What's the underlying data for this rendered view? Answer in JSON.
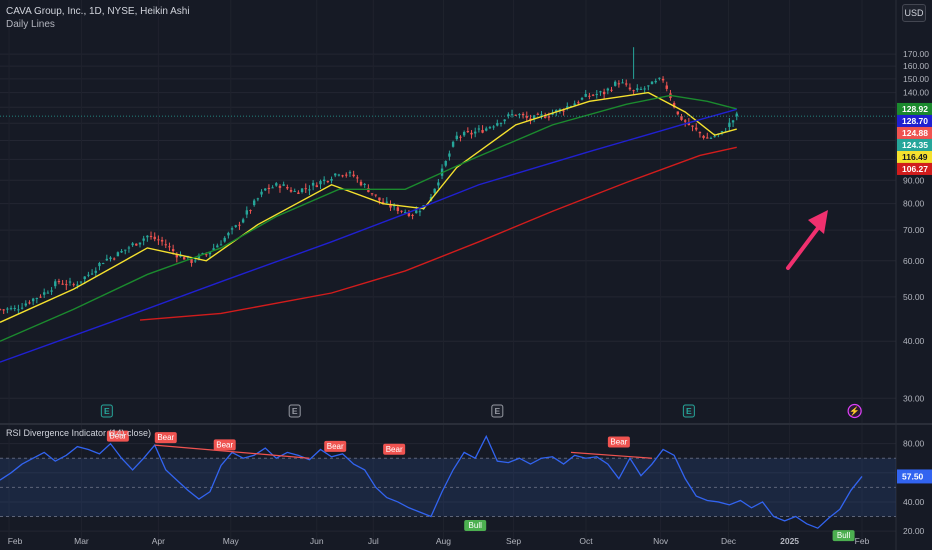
{
  "header": {
    "title": "CAVA Group, Inc., 1D, NYSE, Heikin Ashi",
    "subtitle": "Daily Lines",
    "currency": "USD"
  },
  "rsi_panel": {
    "title": "RSI Divergence Indicator (14) close)"
  },
  "colors": {
    "background": "#161a25",
    "candle_up": "#26a69a",
    "candle_down": "#ef5350",
    "ma_yellow": "#f5e12e",
    "ma_green": "#1b8a2e",
    "ma_blue": "#2020d0",
    "ma_red": "#d11c1c",
    "rsi_line": "#3264f0",
    "arrow": "#f0306e"
  },
  "chart_data": [
    {
      "type": "candlestick",
      "title": "CAVA Group, Inc., 1D, NYSE, Heikin Ashi",
      "x_ticks": [
        "Feb",
        "Mar",
        "Apr",
        "May",
        "Jun",
        "Jul",
        "Aug",
        "Sep",
        "Oct",
        "Nov",
        "Dec",
        "2025",
        "Feb"
      ],
      "y_ticks": [
        30.0,
        40.0,
        50.0,
        60.0,
        70.0,
        80.0,
        90.0,
        100.0,
        110.0,
        120.0,
        130.0,
        140.0,
        150.0,
        160.0,
        170.0
      ],
      "y_scale": "log",
      "ylim": [
        28,
        190
      ],
      "price_path": [
        [
          0,
          47
        ],
        [
          4,
          47
        ],
        [
          8,
          49
        ],
        [
          12,
          51
        ],
        [
          16,
          54
        ],
        [
          20,
          53
        ],
        [
          24,
          56
        ],
        [
          28,
          60
        ],
        [
          32,
          62
        ],
        [
          36,
          65
        ],
        [
          40,
          68
        ],
        [
          44,
          66
        ],
        [
          48,
          62
        ],
        [
          52,
          60
        ],
        [
          56,
          62
        ],
        [
          60,
          66
        ],
        [
          64,
          71
        ],
        [
          68,
          78
        ],
        [
          72,
          86
        ],
        [
          76,
          88
        ],
        [
          80,
          85
        ],
        [
          84,
          87
        ],
        [
          88,
          90
        ],
        [
          92,
          94
        ],
        [
          96,
          92
        ],
        [
          100,
          86
        ],
        [
          104,
          80
        ],
        [
          108,
          78
        ],
        [
          112,
          76
        ],
        [
          116,
          80
        ],
        [
          120,
          94
        ],
        [
          124,
          112
        ],
        [
          128,
          114
        ],
        [
          132,
          117
        ],
        [
          136,
          122
        ],
        [
          140,
          126
        ],
        [
          144,
          122
        ],
        [
          148,
          125
        ],
        [
          152,
          128
        ],
        [
          156,
          133
        ],
        [
          160,
          138
        ],
        [
          164,
          140
        ],
        [
          168,
          148
        ],
        [
          172,
          140
        ],
        [
          176,
          144
        ],
        [
          180,
          150
        ],
        [
          184,
          125
        ],
        [
          188,
          117
        ],
        [
          192,
          111
        ],
        [
          196,
          114
        ],
        [
          199,
          122
        ],
        [
          200,
          124.35
        ]
      ],
      "moving_averages": [
        {
          "color": "#f5e12e",
          "label": "116.49",
          "points": [
            [
              0,
              44
            ],
            [
              20,
              52
            ],
            [
              40,
              64
            ],
            [
              56,
              60
            ],
            [
              70,
              72
            ],
            [
              90,
              88
            ],
            [
              104,
              80
            ],
            [
              115,
              78
            ],
            [
              124,
              96
            ],
            [
              140,
              119
            ],
            [
              160,
              134
            ],
            [
              176,
              140
            ],
            [
              186,
              127
            ],
            [
              194,
              113
            ],
            [
              200,
              116.49
            ]
          ]
        },
        {
          "color": "#1b8a2e",
          "label": "128.92",
          "points": [
            [
              0,
              40
            ],
            [
              20,
              47
            ],
            [
              40,
              56
            ],
            [
              60,
              64
            ],
            [
              75,
              75
            ],
            [
              92,
              86
            ],
            [
              110,
              86
            ],
            [
              128,
              100
            ],
            [
              150,
              119
            ],
            [
              170,
              132
            ],
            [
              182,
              138
            ],
            [
              192,
              134
            ],
            [
              200,
              128.92
            ]
          ]
        },
        {
          "color": "#2020d0",
          "label": "128.70",
          "points": [
            [
              0,
              36
            ],
            [
              30,
              44
            ],
            [
              60,
              54
            ],
            [
              90,
              66
            ],
            [
              110,
              76
            ],
            [
              130,
              88
            ],
            [
              160,
              104
            ],
            [
              185,
              119
            ],
            [
              200,
              128.7
            ]
          ]
        },
        {
          "color": "#d11c1c",
          "label": "106.27",
          "points": [
            [
              38,
              44.5
            ],
            [
              60,
              46
            ],
            [
              90,
              51
            ],
            [
              110,
              57
            ],
            [
              130,
              66
            ],
            [
              150,
              77
            ],
            [
              170,
              89
            ],
            [
              190,
              102
            ],
            [
              200,
              106.27
            ]
          ]
        }
      ],
      "price_labels": [
        {
          "value": 128.92,
          "text": "128.92",
          "bg": "#1b8a2e",
          "fg": "#ffffff"
        },
        {
          "value": 128.7,
          "text": "128.70",
          "bg": "#2020d0",
          "fg": "#ffffff"
        },
        {
          "value": 124.88,
          "text": "124.88",
          "bg": "#ef5350",
          "fg": "#ffffff"
        },
        {
          "value": 124.35,
          "text": "124.35",
          "bg": "#26a69a",
          "fg": "#ffffff"
        },
        {
          "value": 116.49,
          "text": "116.49",
          "bg": "#f5e12e",
          "fg": "#131722"
        },
        {
          "value": 106.27,
          "text": "106.27",
          "bg": "#d11c1c",
          "fg": "#ffffff"
        }
      ],
      "earnings_markers": [
        {
          "t": 29,
          "kind": "E",
          "color": "#26a69a"
        },
        {
          "t": 80,
          "kind": "E",
          "color": "#9598a1"
        },
        {
          "t": 135,
          "kind": "E",
          "color": "#9598a1"
        },
        {
          "t": 187,
          "kind": "E",
          "color": "#26a69a"
        },
        {
          "t": 232,
          "kind": "⚡",
          "color": "#e040fb"
        }
      ]
    },
    {
      "type": "line",
      "title": "RSI Divergence Indicator (14) close)",
      "y_ticks": [
        20.0,
        40.0,
        60.0,
        80.0
      ],
      "ylim": [
        18,
        88
      ],
      "current_value": 57.5,
      "overbought": 70,
      "oversold": 30,
      "midline": 50,
      "rsi": [
        [
          0,
          55
        ],
        [
          3,
          60
        ],
        [
          6,
          66
        ],
        [
          9,
          70
        ],
        [
          12,
          74
        ],
        [
          15,
          68
        ],
        [
          18,
          72
        ],
        [
          21,
          78
        ],
        [
          24,
          76
        ],
        [
          27,
          73
        ],
        [
          30,
          80
        ],
        [
          33,
          70
        ],
        [
          36,
          62
        ],
        [
          39,
          70
        ],
        [
          42,
          79
        ],
        [
          45,
          62
        ],
        [
          48,
          55
        ],
        [
          51,
          48
        ],
        [
          54,
          42
        ],
        [
          57,
          47
        ],
        [
          60,
          65
        ],
        [
          63,
          74
        ],
        [
          66,
          70
        ],
        [
          69,
          72
        ],
        [
          72,
          77
        ],
        [
          75,
          70
        ],
        [
          78,
          74
        ],
        [
          81,
          72
        ],
        [
          84,
          69
        ],
        [
          87,
          76
        ],
        [
          90,
          71
        ],
        [
          93,
          73
        ],
        [
          96,
          66
        ],
        [
          99,
          62
        ],
        [
          102,
          50
        ],
        [
          105,
          43
        ],
        [
          108,
          40
        ],
        [
          111,
          36
        ],
        [
          114,
          33
        ],
        [
          117,
          30
        ],
        [
          120,
          47
        ],
        [
          123,
          62
        ],
        [
          126,
          74
        ],
        [
          129,
          70
        ],
        [
          132,
          85
        ],
        [
          135,
          68
        ],
        [
          138,
          67
        ],
        [
          141,
          70
        ],
        [
          144,
          66
        ],
        [
          147,
          70
        ],
        [
          150,
          71
        ],
        [
          153,
          66
        ],
        [
          156,
          72
        ],
        [
          159,
          70
        ],
        [
          162,
          71
        ],
        [
          165,
          66
        ],
        [
          168,
          56
        ],
        [
          171,
          70
        ],
        [
          174,
          58
        ],
        [
          177,
          66
        ],
        [
          180,
          76
        ],
        [
          183,
          72
        ],
        [
          186,
          56
        ],
        [
          189,
          44
        ],
        [
          192,
          41
        ],
        [
          195,
          40
        ],
        [
          198,
          38
        ],
        [
          201,
          41
        ],
        [
          204,
          36
        ],
        [
          207,
          40
        ],
        [
          210,
          30
        ],
        [
          213,
          27
        ],
        [
          216,
          30
        ],
        [
          219,
          25
        ],
        [
          222,
          22
        ],
        [
          225,
          29
        ],
        [
          228,
          35
        ],
        [
          231,
          48
        ],
        [
          234,
          57.5
        ]
      ],
      "signals": [
        {
          "t": 32,
          "rsi": 80,
          "text": "Bear"
        },
        {
          "t": 45,
          "rsi": 79,
          "text": "Bear"
        },
        {
          "t": 61,
          "rsi": 74,
          "text": "Bear"
        },
        {
          "t": 91,
          "rsi": 73,
          "text": "Bear"
        },
        {
          "t": 107,
          "rsi": 71,
          "text": "Bear"
        },
        {
          "t": 168,
          "rsi": 76,
          "text": "Bear"
        },
        {
          "t": 129,
          "rsi": 29,
          "text": "Bull"
        },
        {
          "t": 229,
          "rsi": 22,
          "text": "Bull"
        }
      ],
      "divergence_lines": [
        {
          "from": [
            42,
            79
          ],
          "to": [
            84,
            70
          ],
          "kind": "bear"
        },
        {
          "from": [
            155,
            74
          ],
          "to": [
            177,
            70
          ],
          "kind": "bear"
        }
      ]
    }
  ]
}
